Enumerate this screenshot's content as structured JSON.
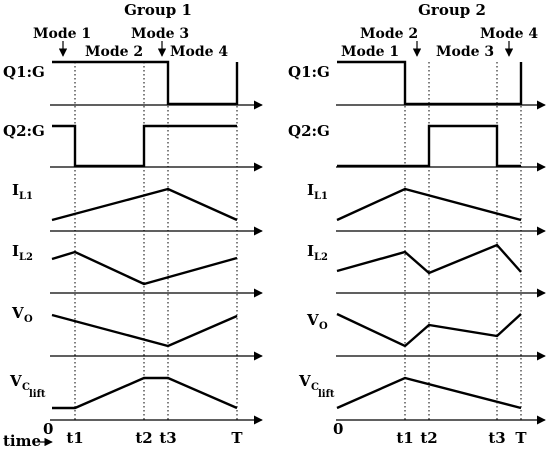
{
  "groups": [
    {
      "title": "Group 1",
      "modes": [
        "Mode 1",
        "Mode 2",
        "Mode 3",
        "Mode 4"
      ],
      "signals": [
        "Q1:G",
        "Q2:G",
        "I",
        "I",
        "V",
        "V"
      ],
      "subscripts": [
        "",
        "",
        "L1",
        "L2",
        "O",
        "C"
      ],
      "subsubscripts": [
        "",
        "",
        "",
        "",
        "",
        "lift"
      ],
      "time": {
        "origin": "0",
        "label": "time",
        "ticks": [
          "t1",
          "t2",
          "t3",
          "T"
        ]
      }
    },
    {
      "title": "Group 2",
      "modes": [
        "Mode 1",
        "Mode 2",
        "Mode 3",
        "Mode 4"
      ],
      "signals": [
        "Q1:G",
        "Q2:G",
        "I",
        "I",
        "V",
        "V"
      ],
      "subscripts": [
        "",
        "",
        "L1",
        "L2",
        "O",
        "C"
      ],
      "subsubscripts": [
        "",
        "",
        "",
        "",
        "",
        "lift"
      ]
    }
  ],
  "group2_ticks": [
    "0",
    "t1",
    "t2",
    "t3",
    "T"
  ]
}
